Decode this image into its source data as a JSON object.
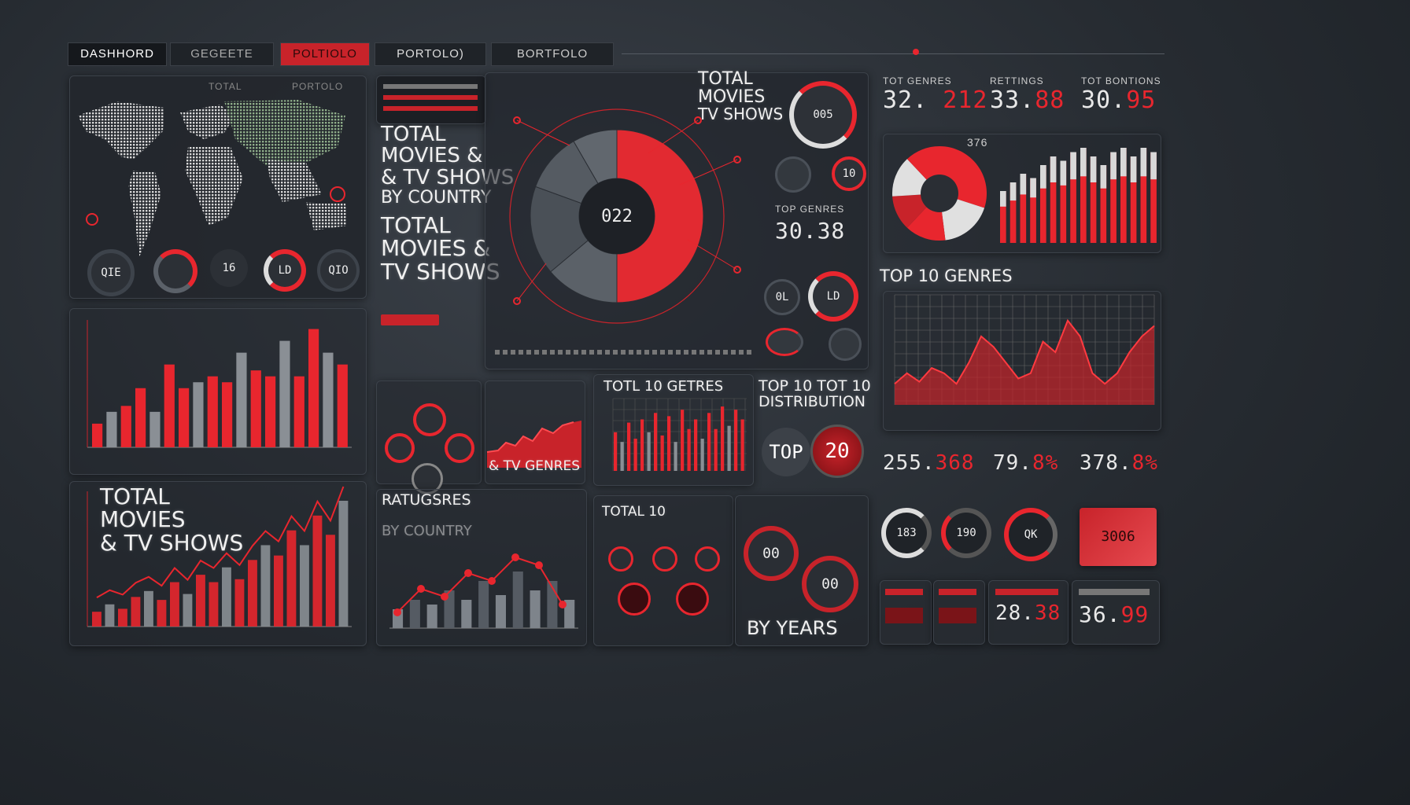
{
  "nav": {
    "tabs": [
      "DASHHORD",
      "GEGEETE",
      "POLTIOLO",
      "PORTOLO)",
      "BORTFOLO"
    ]
  },
  "texts": {
    "map_label": "TOTAL",
    "map_label2": "PORTOLO",
    "country_title": [
      "TOTAL",
      "MOVIES &",
      "& TV SHOWS",
      "BY COUNTRY"
    ],
    "total_title": [
      "TOTAL",
      "MOVIES &",
      "TV SHOWS"
    ],
    "donut_center": "022",
    "top_total": [
      "TOTAL",
      "MOVIES",
      "TV SHOWS"
    ],
    "top_badge": "005",
    "top_genres_small": "TOP GENRES",
    "top_genres_value": "30.38",
    "big_movies": [
      "TOTAL",
      "MOVIES",
      "& TV SHOWS"
    ],
    "by_country": "BY COUNTRY",
    "tv_genres": "& TV GENRES",
    "genres_small_title": "TOTL 10 GETRES",
    "distribution_title": [
      "TOP 10 TOT 10",
      "DISTRIBUTION"
    ],
    "top_word": "TOP",
    "top_number": "20",
    "ratings_title": "RATUGSRES",
    "total10": "TOTAL 10",
    "by_years": "BY YEARS",
    "top10_genres": "TOP 10 GENRES",
    "pie_label": "376",
    "badge_red": "3006"
  },
  "stats_top": [
    {
      "label": "TOT GENRES",
      "value_white": "32.",
      "value_red": "212"
    },
    {
      "label": "RETTINGS",
      "value_white": "33.",
      "value_red": "88"
    },
    {
      "label": "TOT BONTIONS",
      "value_white": "30.",
      "value_red": "95"
    }
  ],
  "stats_mid": [
    {
      "value_white": "255.",
      "value_red": "368"
    },
    {
      "value_white": "79.",
      "value_red": "8%"
    },
    {
      "value_white": "378.",
      "value_red": "8%"
    }
  ],
  "stats_bottom": [
    {
      "value_white": "",
      "value_red": ""
    },
    {
      "value_white": "",
      "value_red": ""
    },
    {
      "value_white": "28.",
      "value_red": "38"
    },
    {
      "value_white": "36.",
      "value_red": "99"
    }
  ],
  "knobs_map": [
    "QIE",
    "",
    "16",
    "LD",
    "QIO"
  ],
  "knobs_right": [
    "183",
    "190",
    "QK"
  ],
  "knobs_years": [
    "00",
    "00"
  ],
  "colors": {
    "accent": "#e8262e",
    "grey": "#8a8f95",
    "panel": "#22262c"
  },
  "chart_data": [
    {
      "type": "bar",
      "title": "",
      "series": [
        {
          "values": [
            2,
            3,
            3.5,
            5,
            3,
            7,
            5,
            5.5,
            6,
            5.5,
            8,
            6.5,
            6,
            9,
            6,
            10,
            8,
            7
          ]
        }
      ]
    },
    {
      "type": "bar",
      "title": "",
      "series": [
        {
          "values": [
            1,
            1.5,
            1.2,
            2,
            2.4,
            1.8,
            3,
            2.2,
            3.5,
            3,
            4,
            3.2,
            4.5,
            5.5,
            4.8,
            6.5,
            5.5,
            7.5,
            6.2,
            8.5
          ]
        }
      ]
    },
    {
      "type": "bar",
      "title": "",
      "series": [
        {
          "values": [
            6,
            4.5,
            7.5,
            5,
            8,
            6,
            9,
            5.5,
            8.5,
            4.5,
            9.5,
            6.5,
            8,
            5,
            9,
            6.5,
            10,
            7,
            9.5,
            8
          ]
        }
      ]
    },
    {
      "type": "line",
      "title": "TOP 10 GENRES",
      "series": [
        {
          "values": [
            2,
            3,
            2.2,
            3.5,
            3,
            2,
            4,
            6.5,
            5.5,
            4,
            2.5,
            3,
            6,
            5,
            8,
            6.5,
            3,
            2,
            3,
            5,
            6.5,
            7.5
          ]
        }
      ]
    },
    {
      "type": "pie",
      "title": "",
      "values": [
        30,
        18,
        14,
        12,
        14,
        12
      ]
    }
  ]
}
